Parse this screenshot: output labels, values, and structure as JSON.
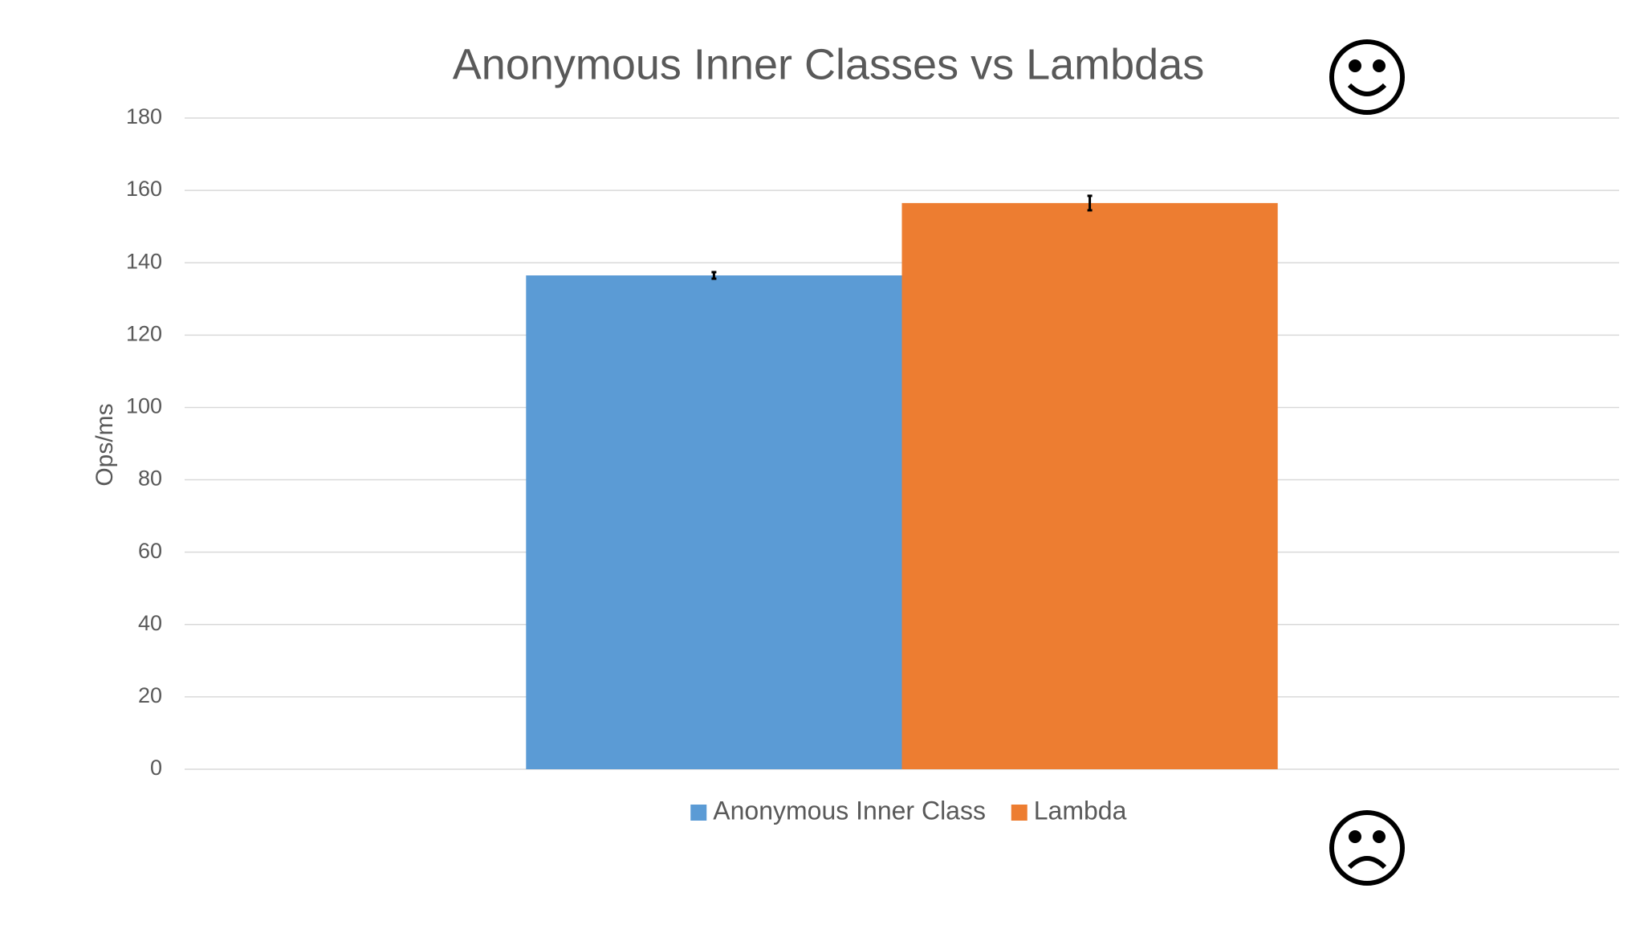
{
  "chart_data": {
    "type": "bar",
    "title": "Anonymous Inner Classes vs Lambdas",
    "y_label": "Ops/ms",
    "categories": [
      null
    ],
    "series": [
      {
        "name": "Anonymous Inner Class",
        "color": "#5b9bd5",
        "values": [
          136.5
        ],
        "errors": [
          0.9
        ]
      },
      {
        "name": "Lambda",
        "color": "#ed7d31",
        "values": [
          156.5
        ],
        "errors": [
          2
        ]
      }
    ],
    "ylim": [
      0,
      180
    ],
    "yticks": [
      0,
      20,
      40,
      60,
      80,
      100,
      120,
      140,
      160,
      180
    ],
    "grid": true,
    "legend": "bottom"
  }
}
